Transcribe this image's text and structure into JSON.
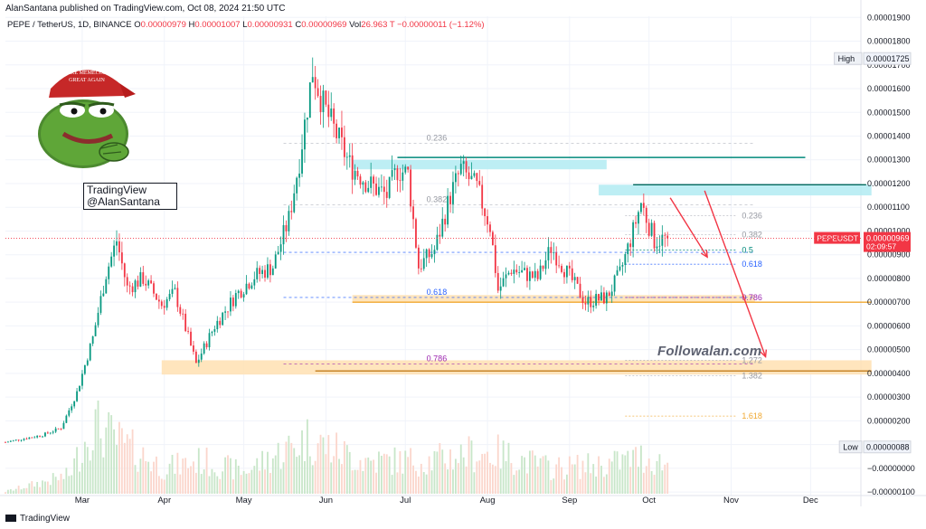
{
  "header": {
    "published": "AlanSantana published on TradingView.com, Oct 08, 2024 21:50 UTC",
    "symbol": "PEPE / TetherUS, 1D, BINANCE",
    "O_label": "O",
    "O": "0.00000979",
    "H_label": "H",
    "H": "0.00001007",
    "L_label": "L",
    "L": "0.00000931",
    "C_label": "C",
    "C": "0.00000969",
    "vol_label": "Vol",
    "vol": "26.963 T",
    "change": "−0.00000011 (−1.12%)"
  },
  "watermark": {
    "line1": "TradingView",
    "line2": "@AlanSantana"
  },
  "brand_text": "Followalan.com",
  "footer": {
    "text": "TradingView"
  },
  "chart_data": {
    "type": "candlestick",
    "series_name": "PEPEUSDT",
    "timeframe": "1D",
    "exchange": "BINANCE",
    "x_range": [
      "2024-02-01",
      "2024-12-20"
    ],
    "xticks": [
      "Mar",
      "Apr",
      "May",
      "Jun",
      "Jul",
      "Aug",
      "Sep",
      "Oct",
      "Nov",
      "Dec"
    ],
    "xtick_dates": [
      "2024-03-01",
      "2024-04-01",
      "2024-05-01",
      "2024-06-01",
      "2024-07-01",
      "2024-08-01",
      "2024-09-01",
      "2024-10-01",
      "2024-11-01",
      "2024-12-01"
    ],
    "ylim": [
      -1.15e-06,
      1.905e-05
    ],
    "yticks": [
      "0.00001900",
      "0.00001800",
      "0.00001700",
      "0.00001600",
      "0.00001500",
      "0.00001400",
      "0.00001300",
      "0.00001200",
      "0.00001100",
      "0.00001000",
      "0.00000900",
      "0.00000800",
      "0.00000700",
      "0.00000600",
      "0.00000500",
      "0.00000400",
      "0.00000300",
      "0.00000200",
      "0.00000100",
      "−0.00000000",
      "−0.00000100"
    ],
    "ytick_values": [
      1.9e-05,
      1.8e-05,
      1.7e-05,
      1.6e-05,
      1.5e-05,
      1.4e-05,
      1.3e-05,
      1.2e-05,
      1.1e-05,
      1e-05,
      9e-06,
      8e-06,
      7e-06,
      6e-06,
      5e-06,
      4e-06,
      3e-06,
      2e-06,
      1e-06,
      0,
      -1e-06
    ],
    "high_label": "High",
    "high_value": "0.00001725",
    "high": 1.725e-05,
    "low_label": "Low",
    "low_value": "0.00000088",
    "low": 8.8e-07,
    "last_label": "PEPEUSDT",
    "last_value": "0.00000969",
    "last": 9.69e-06,
    "countdown": "02:09:57",
    "colors": {
      "up": "#26a69a",
      "up_candle": "#089981",
      "down": "#f23645",
      "volume_up": "#c8e6c9",
      "volume_down": "#fbd6cc",
      "cyan_zone": "#b2ebf2",
      "orange_zone": "#ffe0b2",
      "fib_gray": "#9598a1",
      "fib_blue": "#2962ff",
      "fib_purple": "#9c27b0",
      "fib_orange": "#f0a830",
      "arrow": "#f23645"
    },
    "price_path": [
      [
        "2024-02-01",
        1.1e-06
      ],
      [
        "2024-02-15",
        1.4e-06
      ],
      [
        "2024-02-22",
        1.7e-06
      ],
      [
        "2024-02-28",
        3.2e-06
      ],
      [
        "2024-03-05",
        5.5e-06
      ],
      [
        "2024-03-10",
        8.2e-06
      ],
      [
        "2024-03-14",
        9.6e-06
      ],
      [
        "2024-03-18",
        7.6e-06
      ],
      [
        "2024-03-24",
        8e-06
      ],
      [
        "2024-03-31",
        6.9e-06
      ],
      [
        "2024-04-05",
        7.4e-06
      ],
      [
        "2024-04-13",
        4.4e-06
      ],
      [
        "2024-04-20",
        6e-06
      ],
      [
        "2024-04-28",
        7.3e-06
      ],
      [
        "2024-05-05",
        8.1e-06
      ],
      [
        "2024-05-12",
        8.5e-06
      ],
      [
        "2024-05-18",
        1.05e-05
      ],
      [
        "2024-05-22",
        1.3e-05
      ],
      [
        "2024-05-27",
        1.68e-05
      ],
      [
        "2024-05-31",
        1.53e-05
      ],
      [
        "2024-06-06",
        1.38e-05
      ],
      [
        "2024-06-10",
        1.28e-05
      ],
      [
        "2024-06-17",
        1.2e-05
      ],
      [
        "2024-06-24",
        1.15e-05
      ],
      [
        "2024-06-28",
        1.26e-05
      ],
      [
        "2024-07-02",
        1.24e-05
      ],
      [
        "2024-07-06",
        8.5e-06
      ],
      [
        "2024-07-12",
        9.2e-06
      ],
      [
        "2024-07-18",
        1.15e-05
      ],
      [
        "2024-07-22",
        1.26e-05
      ],
      [
        "2024-07-28",
        1.18e-05
      ],
      [
        "2024-08-02",
        1.02e-05
      ],
      [
        "2024-08-05",
        7.5e-06
      ],
      [
        "2024-08-10",
        8.4e-06
      ],
      [
        "2024-08-20",
        8e-06
      ],
      [
        "2024-08-25",
        9.3e-06
      ],
      [
        "2024-09-02",
        7.9e-06
      ],
      [
        "2024-09-07",
        7e-06
      ],
      [
        "2024-09-15",
        7.2e-06
      ],
      [
        "2024-09-20",
        8.2e-06
      ],
      [
        "2024-09-25",
        1e-05
      ],
      [
        "2024-09-28",
        1.12e-05
      ],
      [
        "2024-10-03",
        9.6e-06
      ],
      [
        "2024-10-08",
        9.69e-06
      ]
    ],
    "volume_max_path": [
      [
        "2024-02-01",
        0.03
      ],
      [
        "2024-02-25",
        0.25
      ],
      [
        "2024-03-05",
        0.95
      ],
      [
        "2024-03-15",
        0.7
      ],
      [
        "2024-04-01",
        0.35
      ],
      [
        "2024-04-15",
        0.45
      ],
      [
        "2024-05-01",
        0.3
      ],
      [
        "2024-05-25",
        0.75
      ],
      [
        "2024-06-15",
        0.45
      ],
      [
        "2024-07-10",
        0.45
      ],
      [
        "2024-07-25",
        0.55
      ],
      [
        "2024-08-05",
        0.55
      ],
      [
        "2024-08-25",
        0.35
      ],
      [
        "2024-09-15",
        0.4
      ],
      [
        "2024-09-28",
        0.5
      ],
      [
        "2024-10-08",
        0.4
      ]
    ],
    "zones": [
      {
        "name": "upper-resistance-zone",
        "color": "cyan",
        "x1": "2024-06-11",
        "x2": "2024-09-15",
        "y1": 1.26e-05,
        "y2": 1.3e-05
      },
      {
        "name": "right-resistance-zone",
        "color": "cyan",
        "x1": "2024-09-12",
        "x2": "2024-12-24",
        "y1": 1.15e-05,
        "y2": 1.195e-05
      },
      {
        "name": "middle-support-zone",
        "color": "orange",
        "x1": "2024-06-11",
        "x2": "2024-11-10",
        "y1": 7e-06,
        "y2": 7.3e-06
      },
      {
        "name": "lower-support-zone",
        "color": "orange",
        "x1": "2024-03-31",
        "x2": "2024-12-24",
        "y1": 3.95e-06,
        "y2": 4.55e-06
      }
    ],
    "hlines": [
      {
        "name": "upper-resistance-line",
        "x1": "2024-06-28",
        "x2": "2024-11-29",
        "y": 1.31e-05,
        "color": "#00897b"
      },
      {
        "name": "right-resistance-line",
        "x1": "2024-09-25",
        "x2": "2024-12-22",
        "y": 1.195e-05,
        "color": "#00695c"
      },
      {
        "name": "middle-support-line",
        "x1": "2024-06-11",
        "x2": "2024-12-24",
        "y": 7e-06,
        "color": "#f0a830"
      },
      {
        "name": "lower-support-line",
        "x1": "2024-05-28",
        "x2": "2024-12-24",
        "y": 4.1e-06,
        "color": "#c7852a"
      }
    ],
    "fib_left": [
      {
        "ratio": "0.236",
        "y": 1.37e-05,
        "x1": "2024-05-16",
        "x2": "2024-11-10",
        "color": "gray"
      },
      {
        "ratio": "0.382",
        "y": 1.11e-05,
        "x1": "2024-05-16",
        "x2": "2024-11-10",
        "color": "gray"
      },
      {
        "ratio": "0.5",
        "y": 9.1e-06,
        "x1": "2024-05-16",
        "x2": "2024-11-10",
        "color": "blue"
      },
      {
        "ratio": "0.618",
        "y": 7.2e-06,
        "x1": "2024-05-16",
        "x2": "2024-11-10",
        "color": "blue"
      },
      {
        "ratio": "0.786",
        "y": 4.4e-06,
        "x1": "2024-05-16",
        "x2": "2024-11-10",
        "color": "purple"
      }
    ],
    "fib_left_labels": [
      {
        "ratio": "0.236",
        "x": "2024-07-09",
        "y": 1.37e-05,
        "color": "gray"
      },
      {
        "ratio": "0.382",
        "x": "2024-07-09",
        "y": 1.11e-05,
        "color": "gray"
      },
      {
        "ratio": "0.618",
        "x": "2024-07-09",
        "y": 7.2e-06,
        "color": "blue"
      },
      {
        "ratio": "0.786",
        "x": "2024-07-09",
        "y": 4.4e-06,
        "color": "purple"
      }
    ],
    "fib_right": [
      {
        "ratio": "0.236",
        "y": 1.065e-05,
        "color": "gray"
      },
      {
        "ratio": "0.382",
        "y": 9.85e-06,
        "color": "gray"
      },
      {
        "ratio": "0.5",
        "y": 9.2e-06,
        "color": "teal"
      },
      {
        "ratio": "0.618",
        "y": 8.6e-06,
        "color": "blue"
      },
      {
        "ratio": "0.786",
        "y": 7.2e-06,
        "color": "purple"
      },
      {
        "ratio": "1.272",
        "y": 4.55e-06,
        "color": "gray"
      },
      {
        "ratio": "1.382",
        "y": 3.9e-06,
        "color": "gray"
      },
      {
        "ratio": "1.618",
        "y": 2.2e-06,
        "color": "orange"
      }
    ],
    "fib_right_x": [
      "2024-09-22",
      "2024-11-03"
    ],
    "arrows": [
      {
        "name": "short-arrow",
        "x1": "2024-10-09",
        "y1": 1.14e-05,
        "x2": "2024-10-23",
        "y2": 8.9e-06
      },
      {
        "name": "long-arrow",
        "x1": "2024-10-22",
        "y1": 1.17e-05,
        "x2": "2024-11-14",
        "y2": 4.7e-06
      }
    ]
  }
}
